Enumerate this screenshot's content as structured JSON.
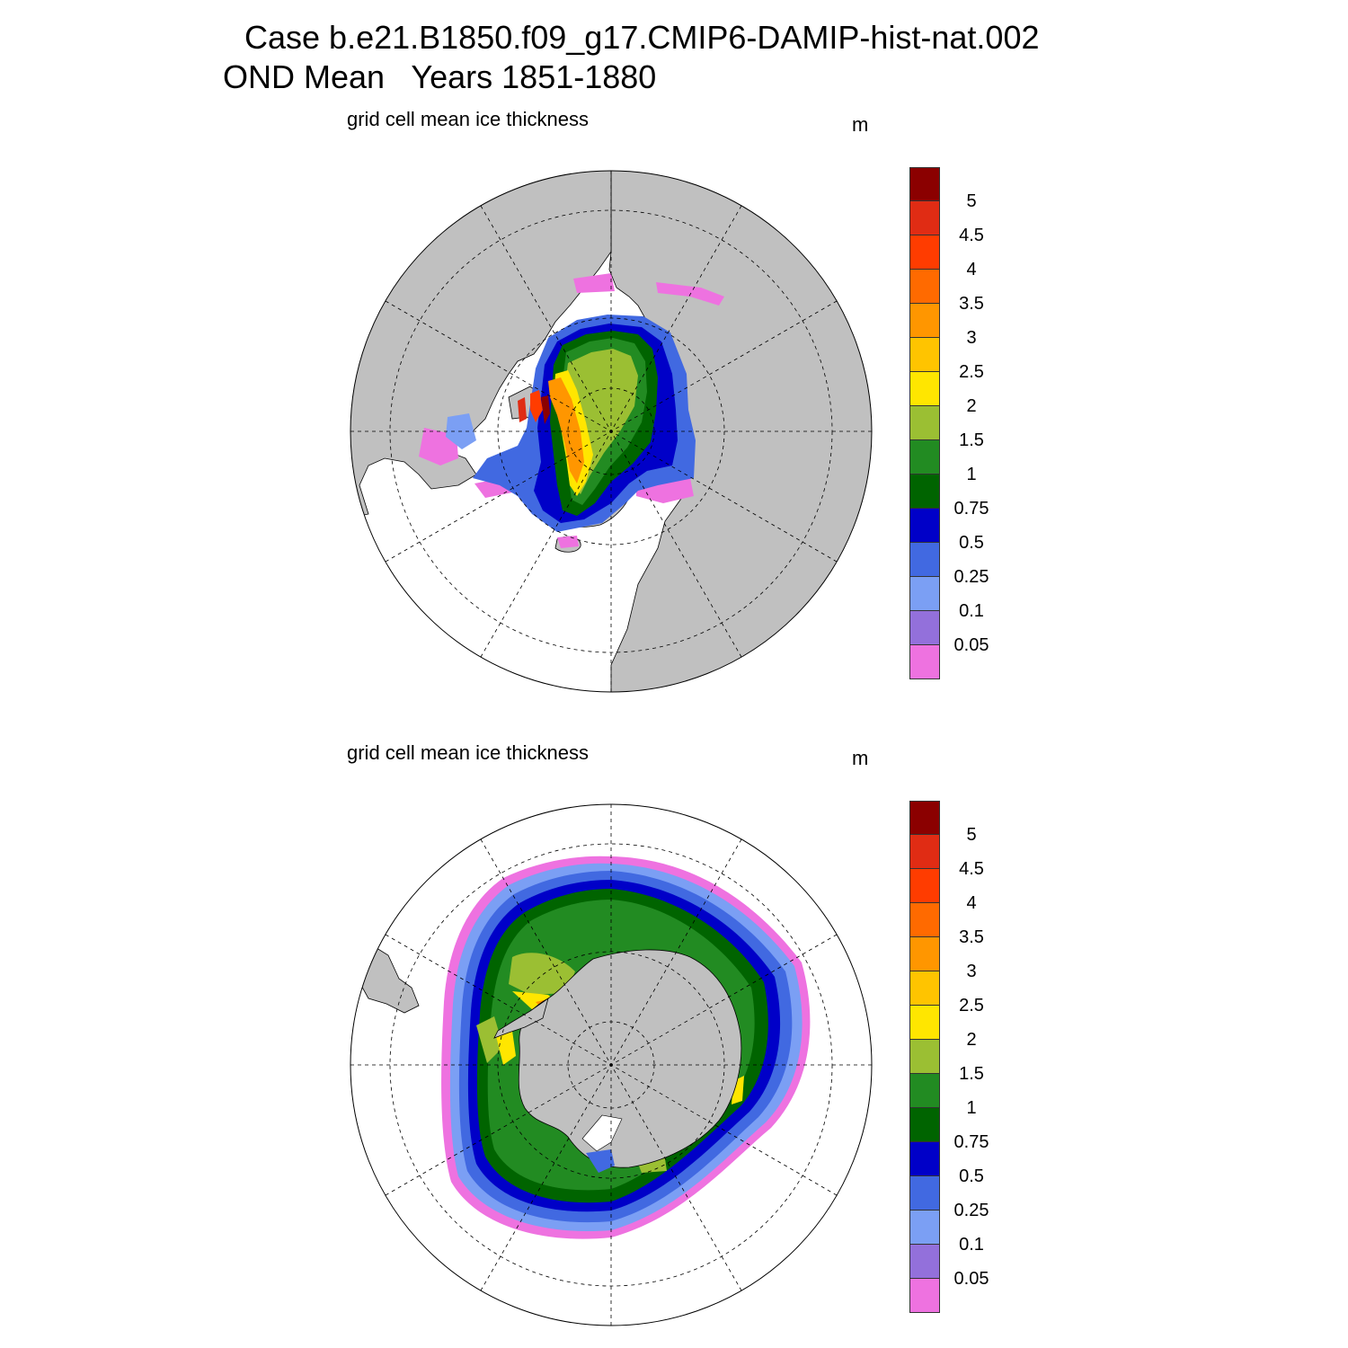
{
  "title": {
    "line1": "Case b.e21.B1850.f09_g17.CMIP6-DAMIP-hist-nat.002",
    "line2": "OND Mean   Years 1851-1880"
  },
  "panels": [
    {
      "id": "north",
      "hemisphere": "north",
      "variable_label": "grid cell mean ice thickness",
      "units": "m"
    },
    {
      "id": "south",
      "hemisphere": "south",
      "variable_label": "grid cell mean ice thickness",
      "units": "m"
    }
  ],
  "colorbar": {
    "tick_labels": [
      "5",
      "4.5",
      "4",
      "3.5",
      "3",
      "2.5",
      "2",
      "1.5",
      "1",
      "0.75",
      "0.5",
      "0.25",
      "0.1",
      "0.05"
    ],
    "colors_top_to_bottom": [
      "#8b0000",
      "#e02c14",
      "#ff3c00",
      "#ff6a00",
      "#ff9600",
      "#ffc400",
      "#ffe600",
      "#9bbf33",
      "#228b22",
      "#006400",
      "#0000c8",
      "#4169e1",
      "#7b9ff4",
      "#9370db",
      "#ee72e0"
    ]
  },
  "map_colors": {
    "land": "#c0c0c0",
    "ocean": "#ffffff"
  }
}
